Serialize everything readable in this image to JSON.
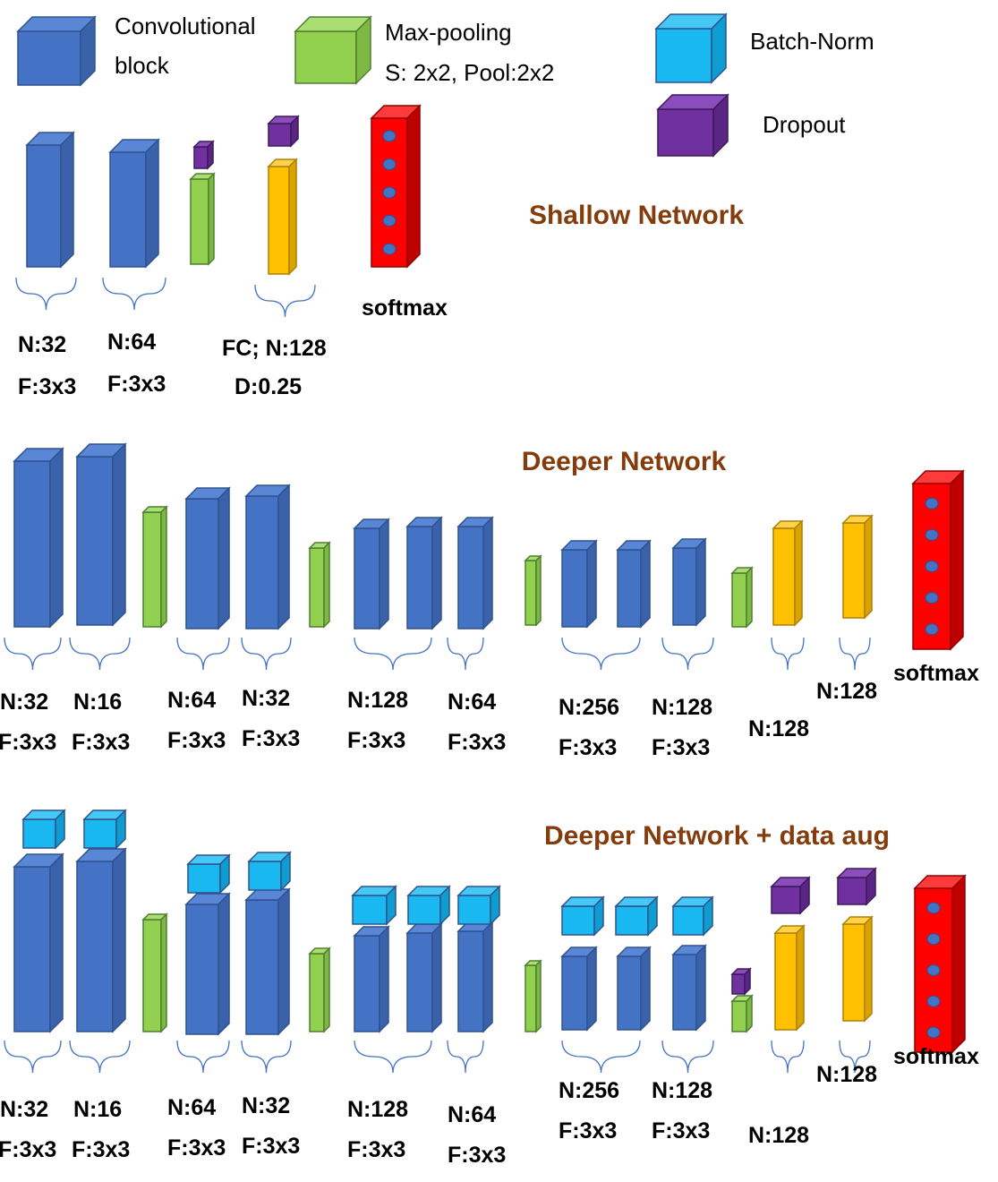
{
  "legend": [
    {
      "lines": [
        "Convolutional",
        "block"
      ]
    },
    {
      "lines": [
        "Max-pooling",
        "S: 2x2, Pool:2x2"
      ]
    },
    {
      "lines": [
        "Batch-Norm"
      ]
    },
    {
      "lines": [
        "Dropout"
      ]
    }
  ],
  "networks": [
    {
      "title": "Shallow Network",
      "softmax": "softmax",
      "labels": [
        [
          "N:32",
          "F:3x3"
        ],
        [
          "N:64",
          "F:3x3"
        ],
        [
          "FC; N:128",
          "D:0.25"
        ]
      ]
    },
    {
      "title": "Deeper Network",
      "softmax": "softmax",
      "labels": [
        [
          "N:32",
          "F:3x3"
        ],
        [
          "N:16",
          "F:3x3"
        ],
        [
          "N:64",
          "F:3x3"
        ],
        [
          "N:32",
          "F:3x3"
        ],
        [
          "N:128",
          "F:3x3"
        ],
        [
          "N:64",
          "F:3x3"
        ],
        [
          "N:256",
          "F:3x3"
        ],
        [
          "N:128",
          "F:3x3"
        ],
        [
          "N:128"
        ],
        [
          "N:128"
        ]
      ]
    },
    {
      "title": "Deeper Network + data aug",
      "softmax": "softmax",
      "labels": [
        [
          "N:32",
          "F:3x3"
        ],
        [
          "N:16",
          "F:3x3"
        ],
        [
          "N:64",
          "F:3x3"
        ],
        [
          "N:32",
          "F:3x3"
        ],
        [
          "N:128",
          "F:3x3"
        ],
        [
          "N:64",
          "F:3x3"
        ],
        [
          "N:256",
          "F:3x3"
        ],
        [
          "N:128",
          "F:3x3"
        ],
        [
          "N:128"
        ],
        [
          "N:128"
        ]
      ]
    }
  ]
}
